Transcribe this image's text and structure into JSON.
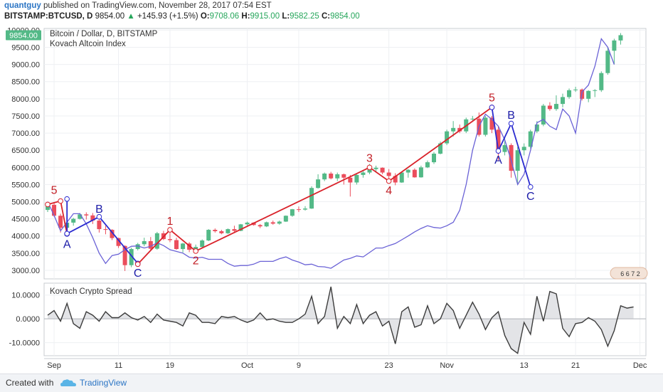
{
  "header": {
    "author": "quantguy",
    "published_text": "published on TradingView.com, November 28, 2017 07:54 EST",
    "symbol": "BITSTAMP:BTCUSD, D",
    "last": "9854.00",
    "change": "+145.93 (+1.5%)",
    "o_label": "O:",
    "o_value": "9708.06",
    "h_label": "H:",
    "h_value": "9915.00",
    "l_label": "L:",
    "l_value": "9582.25",
    "c_label": "C:",
    "c_value": "9854.00"
  },
  "colors": {
    "up": "#53b987",
    "down": "#eb4d5c",
    "index_line": "#6a62d6",
    "wave_red": "#d9222a",
    "wave_blue": "#2a2ad0",
    "spread_line": "#3c3c3c",
    "price_tag": "#53b987"
  },
  "footer": {
    "created_with": "Created with",
    "brand": "TradingView",
    "logo_icon": "tradingview-cloud-icon"
  },
  "chart_data": [
    {
      "type": "candlestick",
      "title": "Bitcoin / Dollar, D, BITSTAMP",
      "overlay_title": "Kovach Altcoin Index",
      "price_tag": "9854.00",
      "ylim": [
        2750,
        10050
      ],
      "yticks": [
        3000,
        3500,
        4000,
        4500,
        5000,
        5500,
        6000,
        6500,
        7000,
        7500,
        8000,
        8500,
        9000,
        9500,
        10000
      ],
      "ytick_labels": [
        "3000.00",
        "3500.00",
        "4000.00",
        "4500.00",
        "5000.00",
        "5500.00",
        "6000.00",
        "6500.00",
        "7000.00",
        "7500.00",
        "8000.00",
        "8500.00",
        "9000.00",
        "9500.00",
        "10000.00"
      ],
      "x_start": "2017-08-31",
      "xticks": [
        {
          "label": "Sep",
          "day": 1
        },
        {
          "label": "11",
          "day": 11
        },
        {
          "label": "19",
          "day": 19
        },
        {
          "label": "Oct",
          "day": 31
        },
        {
          "label": "9",
          "day": 39
        },
        {
          "label": "23",
          "day": 53
        },
        {
          "label": "Nov",
          "day": 62
        },
        {
          "label": "13",
          "day": 74
        },
        {
          "label": "21",
          "day": 82
        },
        {
          "label": "Dec",
          "day": 92
        }
      ],
      "candles": [
        [
          4760,
          4990,
          4700,
          4910
        ],
        [
          4910,
          4980,
          4560,
          4590
        ],
        [
          4590,
          4650,
          4100,
          4240
        ],
        [
          4240,
          4450,
          4070,
          4390
        ],
        [
          4390,
          4530,
          4300,
          4500
        ],
        [
          4500,
          4670,
          4480,
          4630
        ],
        [
          4630,
          4690,
          4480,
          4600
        ],
        [
          4600,
          4670,
          4350,
          4450
        ],
        [
          4450,
          4550,
          4100,
          4200
        ],
        [
          4200,
          4300,
          4050,
          4180
        ],
        [
          4180,
          4200,
          3880,
          3940
        ],
        [
          3940,
          3950,
          3650,
          3710
        ],
        [
          3710,
          3730,
          2980,
          3150
        ],
        [
          3150,
          3660,
          3090,
          3620
        ],
        [
          3620,
          3800,
          3580,
          3760
        ],
        [
          3760,
          3950,
          3700,
          3850
        ],
        [
          3850,
          3970,
          3600,
          3630
        ],
        [
          3630,
          4120,
          3600,
          4080
        ],
        [
          4080,
          4150,
          3880,
          3910
        ],
        [
          3910,
          4100,
          3820,
          3880
        ],
        [
          3880,
          3950,
          3600,
          3620
        ],
        [
          3620,
          3800,
          3520,
          3780
        ],
        [
          3780,
          3820,
          3530,
          3600
        ],
        [
          3600,
          3750,
          3580,
          3680
        ],
        [
          3680,
          3900,
          3650,
          3870
        ],
        [
          3870,
          4200,
          3850,
          4180
        ],
        [
          4180,
          4220,
          4100,
          4140
        ],
        [
          4140,
          4180,
          4050,
          4080
        ],
        [
          4080,
          4220,
          4060,
          4200
        ],
        [
          4200,
          4300,
          4120,
          4150
        ],
        [
          4150,
          4350,
          4140,
          4340
        ],
        [
          4340,
          4420,
          4280,
          4390
        ],
        [
          4390,
          4400,
          4300,
          4320
        ],
        [
          4320,
          4350,
          4230,
          4280
        ],
        [
          4280,
          4420,
          4260,
          4400
        ],
        [
          4400,
          4450,
          4330,
          4360
        ],
        [
          4360,
          4450,
          4330,
          4420
        ],
        [
          4420,
          4600,
          4410,
          4590
        ],
        [
          4590,
          4790,
          4560,
          4780
        ],
        [
          4780,
          4860,
          4700,
          4770
        ],
        [
          4770,
          4870,
          4740,
          4800
        ],
        [
          4800,
          5450,
          4790,
          5400
        ],
        [
          5400,
          5800,
          5380,
          5650
        ],
        [
          5650,
          5850,
          5600,
          5820
        ],
        [
          5820,
          5870,
          5650,
          5680
        ],
        [
          5680,
          5850,
          5600,
          5800
        ],
        [
          5800,
          5820,
          5500,
          5700
        ],
        [
          5700,
          5780,
          5150,
          5560
        ],
        [
          5560,
          5800,
          5500,
          5780
        ],
        [
          5780,
          5900,
          5700,
          5850
        ],
        [
          5850,
          6100,
          5800,
          5950
        ],
        [
          5950,
          6050,
          5850,
          5990
        ],
        [
          5990,
          6000,
          5800,
          5850
        ],
        [
          5850,
          5950,
          5600,
          5750
        ],
        [
          5750,
          5830,
          5480,
          5560
        ],
        [
          5560,
          5870,
          5550,
          5850
        ],
        [
          5850,
          5950,
          5700,
          5930
        ],
        [
          5930,
          5970,
          5700,
          5710
        ],
        [
          5710,
          6050,
          5700,
          6000
        ],
        [
          6000,
          6200,
          5980,
          6150
        ],
        [
          6150,
          6450,
          6100,
          6400
        ],
        [
          6400,
          6750,
          6380,
          6700
        ],
        [
          6700,
          7100,
          6650,
          7050
        ],
        [
          7050,
          7350,
          6900,
          7150
        ],
        [
          7150,
          7250,
          7000,
          7050
        ],
        [
          7050,
          7450,
          7000,
          7400
        ],
        [
          7400,
          7500,
          7350,
          7420
        ],
        [
          7420,
          7600,
          6900,
          6950
        ],
        [
          6950,
          7500,
          6900,
          7450
        ],
        [
          7450,
          7500,
          7000,
          7100
        ],
        [
          7100,
          7200,
          6200,
          6450
        ],
        [
          6450,
          6900,
          6350,
          6650
        ],
        [
          6650,
          6700,
          5700,
          5900
        ],
        [
          5900,
          6600,
          5500,
          6500
        ],
        [
          6500,
          6700,
          6350,
          6600
        ],
        [
          6600,
          7100,
          6550,
          7050
        ],
        [
          7050,
          7350,
          7000,
          7250
        ],
        [
          7250,
          7850,
          7200,
          7800
        ],
        [
          7800,
          7900,
          7650,
          7700
        ],
        [
          7700,
          8100,
          7650,
          7850
        ],
        [
          7850,
          8150,
          7750,
          8050
        ],
        [
          8050,
          8300,
          8000,
          8250
        ],
        [
          8250,
          8350,
          8200,
          8270
        ],
        [
          8270,
          8300,
          7950,
          8000
        ],
        [
          8000,
          8250,
          7900,
          8230
        ],
        [
          8230,
          8280,
          8050,
          8250
        ],
        [
          8250,
          8800,
          8200,
          8750
        ],
        [
          8750,
          9500,
          8700,
          9400
        ],
        [
          9400,
          9750,
          9000,
          9700
        ],
        [
          9700,
          9915,
          9580,
          9854
        ]
      ],
      "kovach_index": [
        5000,
        4600,
        4150,
        4400,
        4650,
        4650,
        4350,
        3950,
        3500,
        3200,
        3430,
        3470,
        3600,
        3700,
        3710,
        3650,
        3700,
        3800,
        3720,
        3600,
        3550,
        3500,
        3380,
        3360,
        3380,
        3320,
        3320,
        3320,
        3200,
        3120,
        3140,
        3140,
        3180,
        3260,
        3260,
        3260,
        3340,
        3390,
        3300,
        3240,
        3160,
        3180,
        3110,
        3100,
        3060,
        3180,
        3300,
        3350,
        3420,
        3390,
        3520,
        3650,
        3650,
        3720,
        3780,
        3890,
        4000,
        4120,
        4220,
        4300,
        4250,
        4230,
        4300,
        4400,
        4750,
        5500,
        6500,
        7200,
        7550,
        7400,
        7200,
        6800,
        6200,
        5500,
        5800,
        6500,
        7300,
        7400,
        7200,
        7100,
        7700,
        7500,
        7000,
        8200,
        8400,
        8950,
        9750,
        9500,
        9000
      ],
      "kovach_index_start_day": 0,
      "waves": [
        {
          "color": "red",
          "points": [
            [
              0,
              4920
            ],
            [
              2,
              5020
            ],
            [
              3,
              4060
            ]
          ]
        },
        {
          "color": "blue",
          "points": [
            [
              3,
              4060
            ],
            [
              3,
              5080
            ],
            [
              3,
              4070
            ],
            [
              8,
              4560
            ],
            [
              14,
              3200
            ],
            [
              14,
              3180
            ]
          ]
        },
        {
          "color": "red",
          "points": [
            [
              14,
              3180
            ],
            [
              19,
              4180
            ],
            [
              23,
              3560
            ],
            [
              50,
              6000
            ],
            [
              53,
              5600
            ],
            [
              69,
              7750
            ]
          ]
        },
        {
          "color": "blue",
          "points": [
            [
              69,
              7750
            ],
            [
              70,
              6480
            ],
            [
              72,
              7280
            ],
            [
              75,
              5430
            ]
          ]
        }
      ],
      "labels": [
        {
          "text": "5",
          "day": 1,
          "price": 5350,
          "color": "red"
        },
        {
          "text": "A",
          "day": 3,
          "price": 3780,
          "color": "blue"
        },
        {
          "text": "B",
          "day": 8,
          "price": 4800,
          "color": "blue"
        },
        {
          "text": "C",
          "day": 14,
          "price": 2940,
          "color": "blue"
        },
        {
          "text": "1",
          "day": 19,
          "price": 4450,
          "color": "red"
        },
        {
          "text": "2",
          "day": 23,
          "price": 3300,
          "color": "red"
        },
        {
          "text": "3",
          "day": 50,
          "price": 6290,
          "color": "red"
        },
        {
          "text": "4",
          "day": 53,
          "price": 5340,
          "color": "red"
        },
        {
          "text": "5",
          "day": 69,
          "price": 8050,
          "color": "red"
        },
        {
          "text": "B",
          "day": 72,
          "price": 7540,
          "color": "blue"
        },
        {
          "text": "A",
          "day": 70,
          "price": 6230,
          "color": "blue"
        },
        {
          "text": "C",
          "day": 75,
          "price": 5180,
          "color": "blue"
        }
      ],
      "badge_digits": "6 6 7 2"
    },
    {
      "type": "area",
      "title": "Kovach Crypto Spread",
      "ylim": [
        -15.5,
        15
      ],
      "yticks": [
        10,
        0,
        -10
      ],
      "ytick_labels": [
        "10.0000",
        "0.0000",
        "-10.0000"
      ],
      "values": [
        1.5,
        3.5,
        -1,
        6.5,
        -2,
        -4,
        3,
        1.5,
        -1,
        3,
        0.5,
        0.5,
        2.5,
        0.5,
        -0.5,
        1,
        -1.5,
        2,
        -0.5,
        -1,
        -1.5,
        -3,
        2.5,
        1.5,
        -1.5,
        -1.5,
        -2,
        1,
        0.5,
        1,
        -0.5,
        -1.5,
        -0.5,
        2.5,
        -0.5,
        0,
        -1,
        -1.5,
        -1.5,
        0,
        2,
        9.5,
        -2,
        1,
        13.5,
        -4,
        1,
        -2,
        6,
        -2,
        1.5,
        3,
        -3,
        -1,
        -10.5,
        3,
        5,
        -3.5,
        -2.5,
        5.5,
        -2,
        0,
        6.5,
        3.5,
        -4,
        1.5,
        7,
        2,
        -4.5,
        0.5,
        3,
        -7,
        -12.5,
        -14.5,
        -1.5,
        -6.5,
        9.5,
        -1,
        11.5,
        10.5,
        -4,
        -7.5,
        -2,
        -1.5,
        0.5,
        -1,
        -4.5,
        -11.5,
        -5,
        5.5,
        4.5,
        5
      ],
      "start_day": 0
    }
  ]
}
